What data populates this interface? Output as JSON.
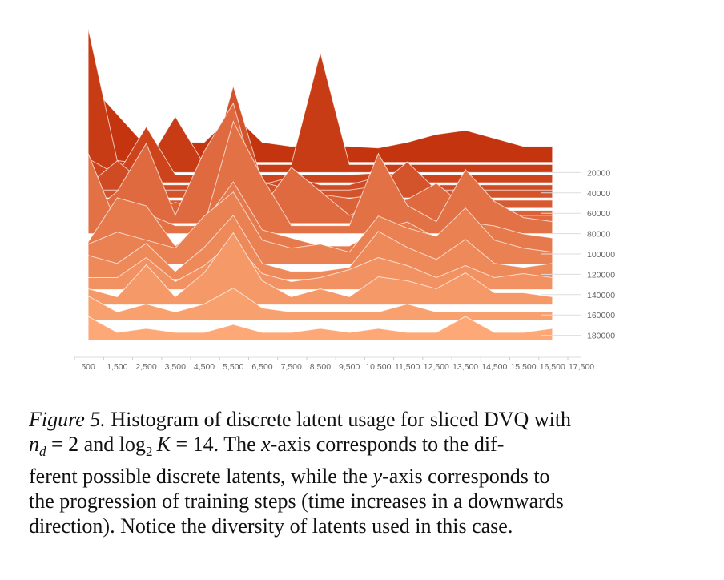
{
  "chart_data": {
    "type": "area",
    "title": "",
    "xlabel": "",
    "ylabel": "",
    "x": [
      500,
      1500,
      2500,
      3500,
      4500,
      5500,
      6500,
      7500,
      8500,
      9500,
      10500,
      11500,
      12500,
      13500,
      14500,
      15500,
      16500
    ],
    "x_tick_labels": [
      "500",
      "1,500",
      "2,500",
      "3,500",
      "4,500",
      "5,500",
      "6,500",
      "7,500",
      "8,500",
      "9,500",
      "10,500",
      "11,500",
      "12,500",
      "13,500",
      "14,500",
      "15,500",
      "16,500",
      "17,500"
    ],
    "xlim": [
      0,
      17500
    ],
    "y_tick_labels": [
      "20000",
      "40000",
      "60000",
      "80000",
      "100000",
      "120000",
      "140000",
      "160000",
      "180000"
    ],
    "y_ticks": [
      20000,
      40000,
      60000,
      80000,
      100000,
      120000,
      140000,
      160000,
      180000
    ],
    "ylim": [
      0,
      200000
    ],
    "style": "ridgeline (joyplot), dark red-orange at top fading to light orange at bottom; time increases downward",
    "series": [
      {
        "step": 10000,
        "values": [
          100,
          60,
          20,
          25,
          25,
          60,
          25,
          20,
          22,
          20,
          18,
          25,
          35,
          40,
          30,
          20,
          20
        ]
      },
      {
        "step": 20000,
        "values": [
          180,
          15,
          10,
          70,
          10,
          10,
          10,
          10,
          150,
          10,
          10,
          10,
          10,
          10,
          10,
          10,
          10
        ]
      },
      {
        "step": 30000,
        "values": [
          30,
          10,
          70,
          10,
          10,
          10,
          10,
          10,
          10,
          10,
          12,
          10,
          10,
          10,
          10,
          10,
          10
        ]
      },
      {
        "step": 40000,
        "values": [
          10,
          40,
          10,
          10,
          10,
          50,
          10,
          20,
          10,
          10,
          20,
          10,
          10,
          10,
          10,
          10,
          10
        ]
      },
      {
        "step": 45000,
        "values": [
          10,
          10,
          10,
          10,
          10,
          140,
          20,
          10,
          10,
          10,
          15,
          45,
          10,
          10,
          10,
          10,
          10
        ]
      },
      {
        "step": 55000,
        "values": [
          10,
          10,
          10,
          10,
          10,
          10,
          10,
          10,
          10,
          10,
          10,
          10,
          10,
          10,
          10,
          10,
          10
        ]
      },
      {
        "step": 65000,
        "values": [
          20,
          10,
          5,
          20,
          10,
          15,
          20,
          10,
          30,
          25,
          30,
          10,
          10,
          10,
          10,
          10,
          10
        ]
      },
      {
        "step": 70000,
        "values": [
          10,
          40,
          100,
          10,
          90,
          150,
          20,
          70,
          40,
          10,
          25,
          30,
          50,
          20,
          10,
          10,
          10
        ]
      },
      {
        "step": 80000,
        "values": [
          100,
          10,
          25,
          10,
          10,
          140,
          70,
          10,
          10,
          10,
          100,
          35,
          15,
          80,
          40,
          20,
          15
        ]
      },
      {
        "step": 100000,
        "values": [
          15,
          70,
          60,
          10,
          40,
          90,
          30,
          20,
          10,
          10,
          30,
          40,
          20,
          40,
          35,
          25,
          20
        ]
      },
      {
        "step": 110000,
        "values": [
          25,
          40,
          30,
          20,
          60,
          90,
          30,
          20,
          25,
          15,
          60,
          45,
          35,
          70,
          30,
          20,
          15
        ]
      },
      {
        "step": 125000,
        "values": [
          30,
          20,
          45,
          10,
          40,
          80,
          20,
          10,
          10,
          15,
          60,
          40,
          25,
          50,
          20,
          15,
          20
        ]
      },
      {
        "step": 135000,
        "values": [
          15,
          15,
          40,
          10,
          30,
          60,
          20,
          10,
          15,
          25,
          40,
          30,
          15,
          30,
          15,
          20,
          15
        ]
      },
      {
        "step": 150000,
        "values": [
          20,
          10,
          50,
          10,
          40,
          90,
          30,
          10,
          20,
          10,
          35,
          30,
          20,
          40,
          15,
          15,
          10
        ]
      },
      {
        "step": 165000,
        "values": [
          30,
          10,
          20,
          10,
          20,
          40,
          15,
          10,
          10,
          10,
          10,
          20,
          10,
          10,
          10,
          10,
          10
        ]
      },
      {
        "step": 185000,
        "values": [
          30,
          10,
          15,
          10,
          10,
          20,
          10,
          10,
          15,
          10,
          15,
          10,
          10,
          30,
          10,
          10,
          15
        ]
      }
    ]
  },
  "caption": {
    "figure_label": "Figure 5.",
    "line1_text": " Histogram of discrete latent usage for sliced DVQ with",
    "nd_symbol": "n",
    "nd_sub": "d",
    "eq1": " = 2 and ",
    "log_text": "log",
    "log_sub": "2",
    "k_symbol": "K",
    "eq2": " = 14.  The ",
    "x_var": "x",
    "line2_rest": "-axis corresponds to the dif-",
    "line3_pre": "ferent possible discrete latents, while the ",
    "y_var": "y",
    "line3_rest": "-axis corresponds to",
    "line4": "the progression of training steps (time increases in a downwards",
    "line5": "direction). Notice the diversity of latents used in this case."
  }
}
